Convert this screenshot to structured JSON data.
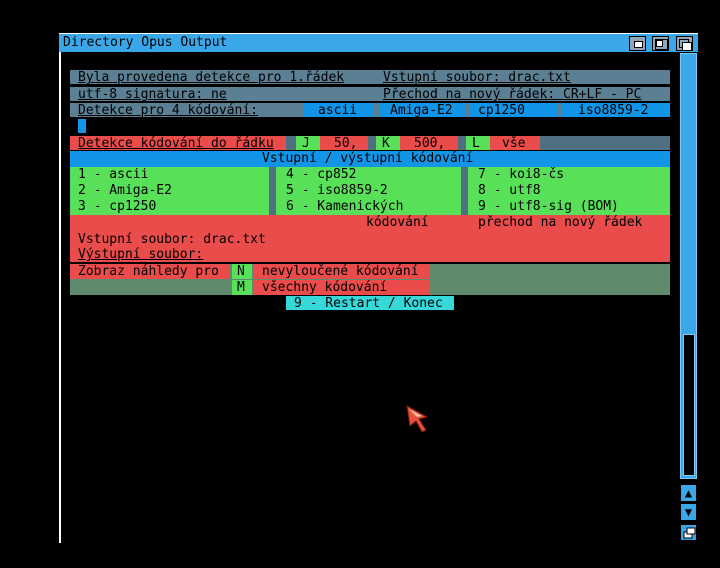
{
  "window": {
    "title": "Directory Opus Output"
  },
  "detection": {
    "line1_left": "Byla provedena detekce pro 1.řádek",
    "line1_right": "Vstupní soubor: drac.txt",
    "line2_left": "utf-8 signatura: ne",
    "line2_right": "Přechod na nový řádek: CR+LF - PC",
    "line3_label": "Detekce pro 4 kódování:",
    "encodings": [
      "ascii",
      "Amiga-E2",
      "cp1250",
      "iso8859-2"
    ]
  },
  "depth": {
    "label": "Detekce kódování do řádku",
    "options": [
      {
        "key": "J",
        "value": "50,"
      },
      {
        "key": "K",
        "value": "500,"
      },
      {
        "key": "L",
        "value": "vše"
      }
    ]
  },
  "io_header": "Vstupní / výstupní kódování",
  "encoding_options": [
    [
      "1 - ascii",
      "4 - cp852",
      "7 - koi8-čs"
    ],
    [
      "2 - Amiga-E2",
      "5 - iso8859-2",
      "8 - utf8"
    ],
    [
      "3 - cp1250",
      "6 - Kamenických",
      "9 - utf8-sig (BOM)"
    ]
  ],
  "io": {
    "col_encoding": "kódování",
    "col_newline": "přechod na nový řádek",
    "input_file": "Vstupní soubor: drac.txt",
    "output_file": "Výstupní soubor:"
  },
  "preview": {
    "label": "Zobraz náhledy pro",
    "opt_n_key": "N",
    "opt_n_label": "nevyloučené kódování",
    "opt_m_key": "M",
    "opt_m_label": "všechny kódování"
  },
  "restart_label": "9 - Restart / Konec",
  "icons": [
    "iconify-gadget-icon",
    "zoom-gadget-icon",
    "depth-gadget-icon",
    "scroll-up-icon",
    "scroll-down-icon",
    "size-gadget-icon",
    "mouse-pointer-icon"
  ],
  "colors": {
    "title": "#3aa8e8",
    "slate": "#5b7f93",
    "blue": "#1295e6",
    "green": "#58e058",
    "red": "#ea4c4c",
    "cyan": "#35d9da"
  }
}
